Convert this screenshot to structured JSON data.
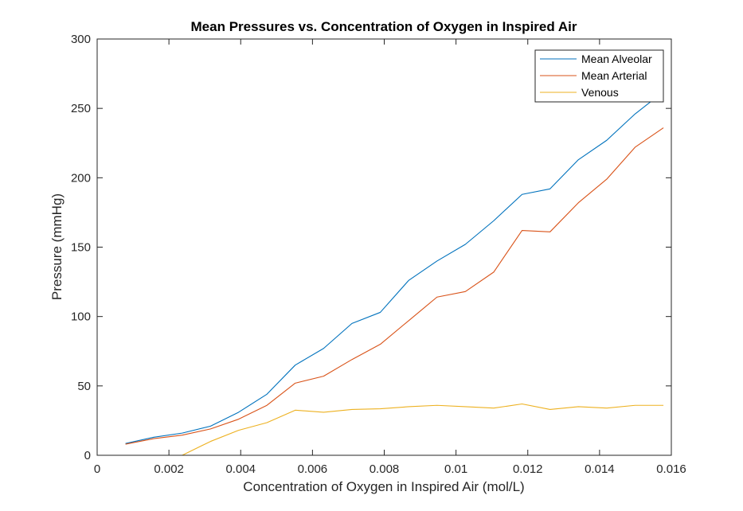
{
  "chart_data": {
    "type": "line",
    "title": "Mean Pressures vs. Concentration of Oxygen in Inspired Air",
    "xlabel": "Concentration of Oxygen in Inspired Air (mol/L)",
    "ylabel": "Pressure (mmHg)",
    "xlim": [
      0,
      0.016
    ],
    "ylim": [
      0,
      300
    ],
    "xticks": [
      0,
      0.002,
      0.004,
      0.006,
      0.008,
      0.01,
      0.012,
      0.014,
      0.016
    ],
    "xtick_labels": [
      "0",
      "0.002",
      "0.004",
      "0.006",
      "0.008",
      "0.01",
      "0.012",
      "0.014",
      "0.016"
    ],
    "yticks": [
      0,
      50,
      100,
      150,
      200,
      250,
      300
    ],
    "ytick_labels": [
      "0",
      "50",
      "100",
      "150",
      "200",
      "250",
      "300"
    ],
    "grid": false,
    "legend_position": "top-right",
    "x": [
      0.00079,
      0.00158,
      0.00237,
      0.00316,
      0.00394,
      0.00473,
      0.00552,
      0.00631,
      0.0071,
      0.00789,
      0.00868,
      0.00947,
      0.01026,
      0.01105,
      0.01184,
      0.01262,
      0.01341,
      0.0142,
      0.01499,
      0.01578
    ],
    "series": [
      {
        "name": "Mean Alveolar",
        "color": "#0072BD",
        "values": [
          8.5,
          13,
          16,
          21,
          31,
          44,
          65,
          77,
          95,
          103,
          126,
          140,
          152,
          169,
          188,
          192,
          213,
          227,
          246,
          262
        ]
      },
      {
        "name": "Mean Arterial",
        "color": "#D95319",
        "values": [
          8,
          12,
          14.5,
          19,
          26,
          36,
          52,
          57,
          69,
          80,
          97,
          114,
          118,
          132,
          162,
          161,
          182,
          199,
          222,
          236
        ]
      },
      {
        "name": "Venous",
        "color": "#EDB120",
        "values": [
          0,
          0,
          0,
          10,
          18,
          23.5,
          32.5,
          31,
          33,
          33.5,
          35,
          36,
          35,
          34,
          37,
          33,
          35,
          34,
          36,
          36
        ]
      }
    ]
  }
}
